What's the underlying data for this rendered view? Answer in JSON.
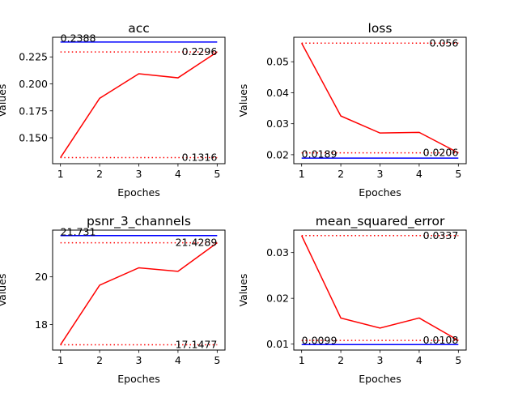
{
  "figure": {
    "background": "#ffffff"
  },
  "chart_data": [
    {
      "type": "line",
      "title": "acc",
      "xlabel": "Epoches",
      "ylabel": "Values",
      "x": [
        1,
        2,
        3,
        4,
        5
      ],
      "xticks": [
        "1",
        "2",
        "3",
        "4",
        "5"
      ],
      "yticks": [
        0.15,
        0.175,
        0.2,
        0.225
      ],
      "ytick_labels": [
        "0.150",
        "0.175",
        "0.200",
        "0.225"
      ],
      "ylim": [
        0.126,
        0.2432
      ],
      "xlim": [
        0.8,
        5.2
      ],
      "grid": false,
      "series": [
        {
          "values": [
            0.1316,
            0.1866,
            0.2094,
            0.2056,
            0.2296
          ],
          "color": "#ff0000",
          "style": "solid"
        }
      ],
      "reference_lines": [
        {
          "y": 0.2388,
          "label": "0.2388",
          "color": "#0000ff",
          "style": "solid",
          "label_anchor": "left"
        },
        {
          "y": 0.2296,
          "label": "0.2296",
          "color": "#ff0000",
          "style": "dotted",
          "label_anchor": "right"
        },
        {
          "y": 0.1316,
          "label": "0.1316",
          "color": "#ff0000",
          "style": "dotted",
          "label_anchor": "right"
        }
      ]
    },
    {
      "type": "line",
      "title": "loss",
      "xlabel": "Epoches",
      "ylabel": "Values",
      "x": [
        1,
        2,
        3,
        4,
        5
      ],
      "xticks": [
        "1",
        "2",
        "3",
        "4",
        "5"
      ],
      "yticks": [
        0.02,
        0.03,
        0.04,
        0.05
      ],
      "ytick_labels": [
        "0.02",
        "0.03",
        "0.04",
        "0.05"
      ],
      "ylim": [
        0.0171,
        0.0579
      ],
      "xlim": [
        0.8,
        5.2
      ],
      "grid": false,
      "series": [
        {
          "values": [
            0.056,
            0.0325,
            0.027,
            0.0272,
            0.0206
          ],
          "color": "#ff0000",
          "style": "solid"
        }
      ],
      "reference_lines": [
        {
          "y": 0.056,
          "label": "0.056",
          "color": "#ff0000",
          "style": "dotted",
          "label_anchor": "right"
        },
        {
          "y": 0.0206,
          "label": "0.0206",
          "color": "#ff0000",
          "style": "dotted",
          "label_anchor": "right"
        },
        {
          "y": 0.0189,
          "label": "0.0189",
          "color": "#0000ff",
          "style": "solid",
          "label_anchor": "left"
        }
      ]
    },
    {
      "type": "line",
      "title": "psnr_3_channels",
      "xlabel": "Epoches",
      "ylabel": "Values",
      "x": [
        1,
        2,
        3,
        4,
        5
      ],
      "xticks": [
        "1",
        "2",
        "3",
        "4",
        "5"
      ],
      "yticks": [
        18,
        20
      ],
      "ytick_labels": [
        "18",
        "20"
      ],
      "ylim": [
        16.928,
        21.9607
      ],
      "xlim": [
        0.8,
        5.2
      ],
      "grid": false,
      "series": [
        {
          "values": [
            17.1477,
            19.65,
            20.38,
            20.23,
            21.4289
          ],
          "color": "#ff0000",
          "style": "solid"
        }
      ],
      "reference_lines": [
        {
          "y": 21.731,
          "label": "21.731",
          "color": "#0000ff",
          "style": "solid",
          "label_anchor": "left"
        },
        {
          "y": 21.4289,
          "label": "21.4289",
          "color": "#ff0000",
          "style": "dotted",
          "label_anchor": "right"
        },
        {
          "y": 17.1477,
          "label": "17.1477",
          "color": "#ff0000",
          "style": "dotted",
          "label_anchor": "right"
        }
      ]
    },
    {
      "type": "line",
      "title": "mean_squared_error",
      "xlabel": "Epoches",
      "ylabel": "Values",
      "x": [
        1,
        2,
        3,
        4,
        5
      ],
      "xticks": [
        "1",
        "2",
        "3",
        "4",
        "5"
      ],
      "yticks": [
        0.01,
        0.02,
        0.03
      ],
      "ytick_labels": [
        "0.01",
        "0.02",
        "0.03"
      ],
      "ylim": [
        0.0087,
        0.0349
      ],
      "xlim": [
        0.8,
        5.2
      ],
      "grid": false,
      "series": [
        {
          "values": [
            0.0337,
            0.0157,
            0.0135,
            0.0157,
            0.0108
          ],
          "color": "#ff0000",
          "style": "solid"
        }
      ],
      "reference_lines": [
        {
          "y": 0.0337,
          "label": "0.0337",
          "color": "#ff0000",
          "style": "dotted",
          "label_anchor": "right"
        },
        {
          "y": 0.0108,
          "label": "0.0108",
          "color": "#ff0000",
          "style": "dotted",
          "label_anchor": "right"
        },
        {
          "y": 0.0099,
          "label": "0.0099",
          "color": "#0000ff",
          "style": "solid",
          "label_anchor": "left"
        }
      ]
    }
  ]
}
